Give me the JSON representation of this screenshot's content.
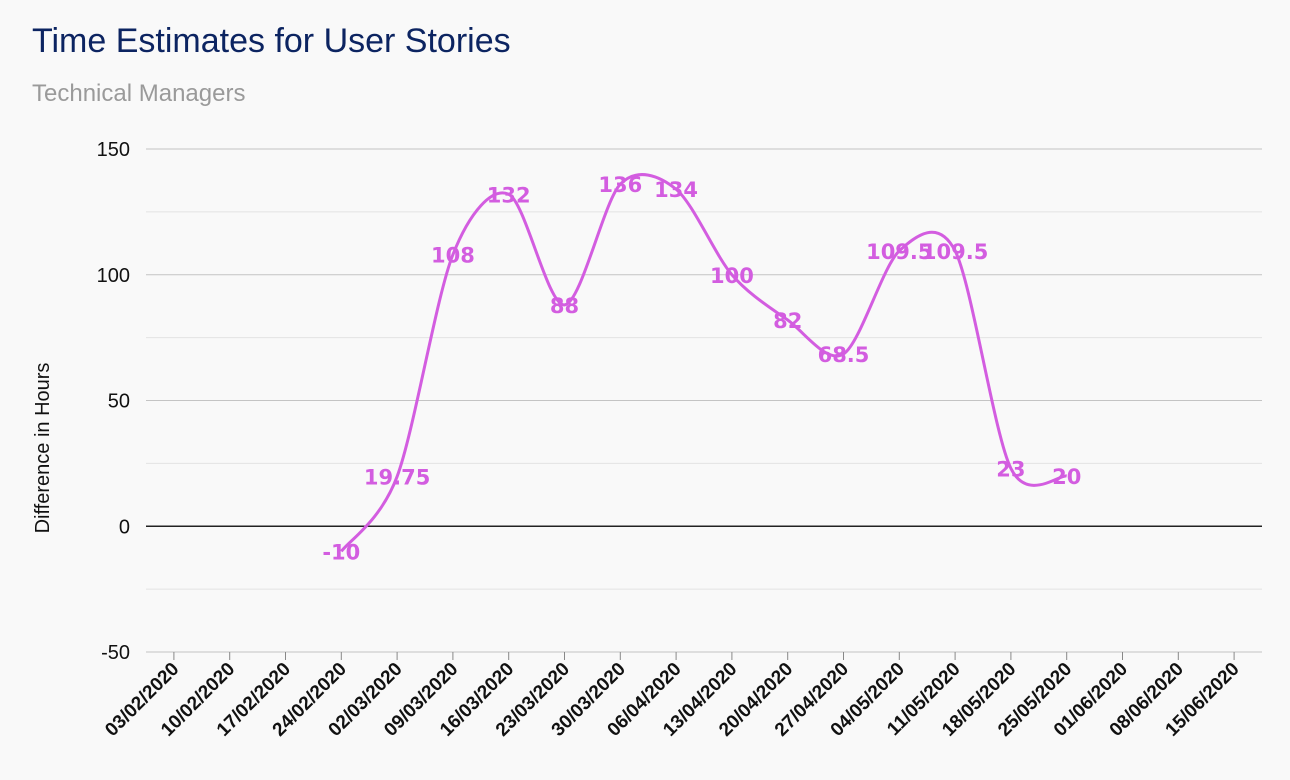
{
  "chart_data": {
    "type": "line",
    "title": "Time Estimates for User Stories",
    "subtitle": "Technical Managers",
    "xlabel": "",
    "ylabel": "Difference in Hours",
    "ylim": [
      -50,
      150
    ],
    "yticks": [
      -50,
      0,
      50,
      100,
      150
    ],
    "grid": true,
    "categories": [
      "03/02/2020",
      "10/02/2020",
      "17/02/2020",
      "24/02/2020",
      "02/03/2020",
      "09/03/2020",
      "16/03/2020",
      "23/03/2020",
      "30/03/2020",
      "06/04/2020",
      "13/04/2020",
      "20/04/2020",
      "27/04/2020",
      "04/05/2020",
      "11/05/2020",
      "18/05/2020",
      "25/05/2020",
      "01/06/2020",
      "08/06/2020",
      "15/06/2020"
    ],
    "series": [
      {
        "color": "#d35de0",
        "smooth": true,
        "points": [
          {
            "x": "24/02/2020",
            "y": -10,
            "label": "-10"
          },
          {
            "x": "02/03/2020",
            "y": 19.75,
            "label": "19.75"
          },
          {
            "x": "09/03/2020",
            "y": 108,
            "label": "108"
          },
          {
            "x": "16/03/2020",
            "y": 132,
            "label": "132"
          },
          {
            "x": "23/03/2020",
            "y": 88,
            "label": "88"
          },
          {
            "x": "30/03/2020",
            "y": 136,
            "label": "136"
          },
          {
            "x": "06/04/2020",
            "y": 134,
            "label": "134"
          },
          {
            "x": "13/04/2020",
            "y": 100,
            "label": "100"
          },
          {
            "x": "20/04/2020",
            "y": 82,
            "label": "82"
          },
          {
            "x": "27/04/2020",
            "y": 68.5,
            "label": "68.5"
          },
          {
            "x": "04/05/2020",
            "y": 109.5,
            "label": "109.5"
          },
          {
            "x": "11/05/2020",
            "y": 109.5,
            "label": "109.5"
          },
          {
            "x": "18/05/2020",
            "y": 23,
            "label": "23"
          },
          {
            "x": "25/05/2020",
            "y": 20,
            "label": "20"
          }
        ]
      }
    ]
  }
}
